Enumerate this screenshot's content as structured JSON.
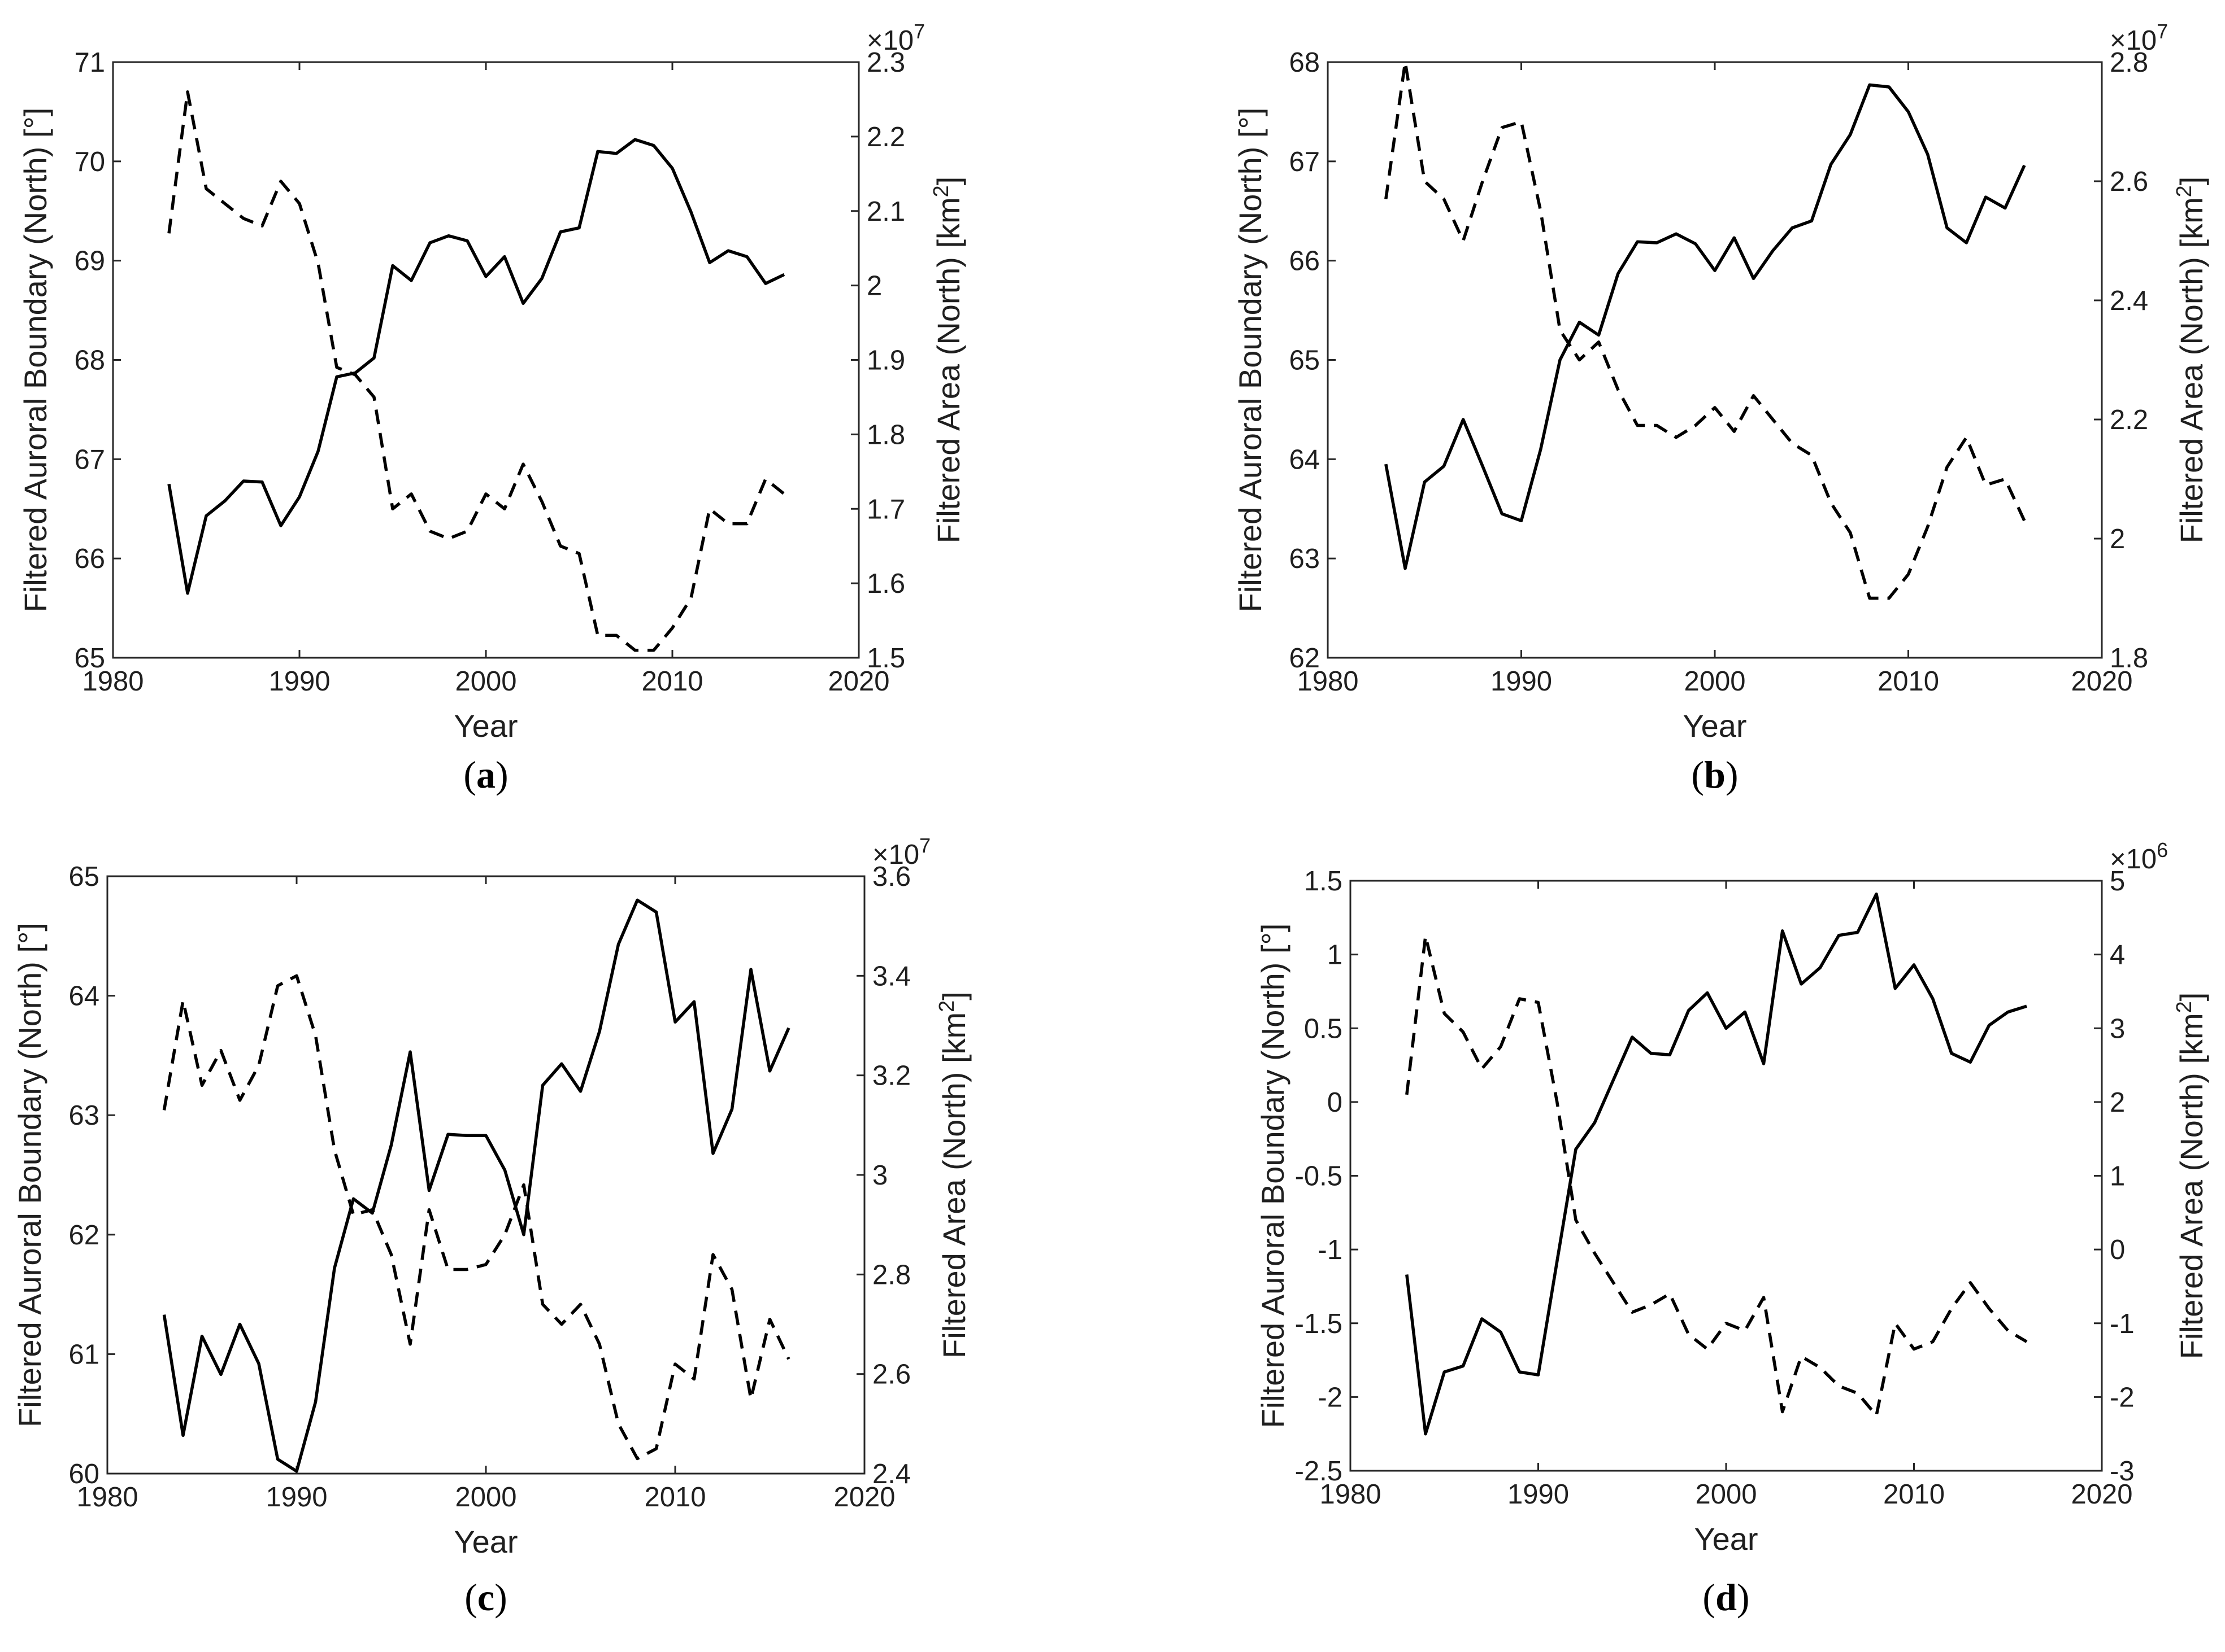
{
  "chart_data": [
    {
      "type": "line",
      "caption": "a",
      "xlabel": "Year",
      "ylabel_left": "Filtered Auroral Boundary (North) [°]",
      "ylabel_right": "Filtered Area (North) [km",
      "ylabel_right_sup": "2",
      "ylabel_right_close": "]",
      "xlim": [
        1980,
        2020
      ],
      "xticks": [
        "1980",
        "1990",
        "2000",
        "2010",
        "2020"
      ],
      "ylim_left": [
        65,
        71
      ],
      "yticks_left": [
        "65",
        "66",
        "67",
        "68",
        "69",
        "70",
        "71"
      ],
      "ylim_right": [
        1.5,
        2.3
      ],
      "yticks_right": [
        "1.5",
        "1.6",
        "1.7",
        "1.8",
        "1.9",
        "2",
        "2.1",
        "2.2",
        "2.3"
      ],
      "right_exponent": "×10",
      "right_exponent_power": "7",
      "x": [
        1983,
        1984,
        1985,
        1986,
        1987,
        1988,
        1989,
        1990,
        1991,
        1992,
        1993,
        1994,
        1995,
        1996,
        1997,
        1998,
        1999,
        2000,
        2001,
        2002,
        2003,
        2004,
        2005,
        2006,
        2007,
        2008,
        2009,
        2010,
        2011,
        2012,
        2013,
        2014,
        2015,
        2016
      ],
      "series": [
        {
          "axis": "left",
          "style": "solid",
          "values": [
            66.75,
            65.65,
            66.43,
            66.58,
            66.78,
            66.77,
            66.33,
            66.62,
            67.08,
            67.83,
            67.87,
            68.02,
            68.95,
            68.8,
            69.18,
            69.25,
            69.2,
            68.84,
            69.04,
            68.57,
            68.82,
            69.29,
            69.33,
            70.1,
            70.08,
            70.22,
            70.16,
            69.93,
            69.49,
            68.98,
            69.1,
            69.04,
            68.77,
            68.86
          ]
        },
        {
          "axis": "right",
          "style": "dashed",
          "values": [
            2.07,
            2.26,
            2.13,
            2.11,
            2.09,
            2.08,
            2.14,
            2.11,
            2.03,
            1.89,
            1.88,
            1.85,
            1.7,
            1.72,
            1.67,
            1.66,
            1.67,
            1.72,
            1.7,
            1.76,
            1.71,
            1.65,
            1.64,
            1.53,
            1.53,
            1.51,
            1.51,
            1.54,
            1.58,
            1.7,
            1.68,
            1.68,
            1.74,
            1.72
          ]
        }
      ]
    },
    {
      "type": "line",
      "caption": "b",
      "xlabel": "Year",
      "ylabel_left": "Filtered Auroral Boundary (North) [°]",
      "ylabel_right": "Filtered Area (North) [km",
      "ylabel_right_sup": "2",
      "ylabel_right_close": "]",
      "xlim": [
        1980,
        2020
      ],
      "xticks": [
        "1980",
        "1990",
        "2000",
        "2010",
        "2020"
      ],
      "ylim_left": [
        62,
        68
      ],
      "yticks_left": [
        "62",
        "63",
        "64",
        "65",
        "66",
        "67",
        "68"
      ],
      "ylim_right": [
        1.8,
        2.8
      ],
      "yticks_right": [
        "1.8",
        "2",
        "2.2",
        "2.4",
        "2.6",
        "2.8"
      ],
      "right_exponent": "×10",
      "right_exponent_power": "7",
      "x": [
        1983,
        1984,
        1985,
        1986,
        1987,
        1988,
        1989,
        1990,
        1991,
        1992,
        1993,
        1994,
        1995,
        1996,
        1997,
        1998,
        1999,
        2000,
        2001,
        2002,
        2003,
        2004,
        2005,
        2006,
        2007,
        2008,
        2009,
        2010,
        2011,
        2012,
        2013,
        2014,
        2015,
        2016
      ],
      "series": [
        {
          "axis": "left",
          "style": "solid",
          "values": [
            63.95,
            62.9,
            63.77,
            63.93,
            64.4,
            63.93,
            63.45,
            63.38,
            64.1,
            65.0,
            65.38,
            65.25,
            65.87,
            66.19,
            66.18,
            66.27,
            66.17,
            65.9,
            66.23,
            65.82,
            66.1,
            66.33,
            66.4,
            66.97,
            67.27,
            67.77,
            67.75,
            67.5,
            67.07,
            66.33,
            66.18,
            66.64,
            66.53,
            66.96
          ]
        },
        {
          "axis": "right",
          "style": "dashed",
          "values": [
            2.57,
            2.8,
            2.6,
            2.57,
            2.5,
            2.6,
            2.69,
            2.7,
            2.55,
            2.35,
            2.3,
            2.33,
            2.25,
            2.19,
            2.19,
            2.17,
            2.19,
            2.22,
            2.18,
            2.24,
            2.2,
            2.16,
            2.14,
            2.06,
            2.01,
            1.9,
            1.9,
            1.94,
            2.02,
            2.12,
            2.17,
            2.09,
            2.1,
            2.03
          ]
        }
      ]
    },
    {
      "type": "line",
      "caption": "c",
      "xlabel": "Year",
      "ylabel_left": "Filtered Auroral Boundary (North) [°]",
      "ylabel_right": "Filtered Area (North) [km",
      "ylabel_right_sup": "2",
      "ylabel_right_close": "]",
      "xlim": [
        1980,
        2020
      ],
      "xticks": [
        "1980",
        "1990",
        "2000",
        "2010",
        "2020"
      ],
      "ylim_left": [
        60,
        65
      ],
      "yticks_left": [
        "60",
        "61",
        "62",
        "63",
        "64",
        "65"
      ],
      "ylim_right": [
        2.4,
        3.6
      ],
      "yticks_right": [
        "2.4",
        "2.6",
        "2.8",
        "3",
        "3.2",
        "3.4",
        "3.6"
      ],
      "right_exponent": "×10",
      "right_exponent_power": "7",
      "x": [
        1983,
        1984,
        1985,
        1986,
        1987,
        1988,
        1989,
        1990,
        1991,
        1992,
        1993,
        1994,
        1995,
        1996,
        1997,
        1998,
        1999,
        2000,
        2001,
        2002,
        2003,
        2004,
        2005,
        2006,
        2007,
        2008,
        2009,
        2010,
        2011,
        2012,
        2013,
        2014,
        2015,
        2016
      ],
      "series": [
        {
          "axis": "left",
          "style": "solid",
          "values": [
            61.33,
            60.32,
            61.15,
            60.83,
            61.25,
            60.92,
            60.12,
            60.02,
            60.6,
            61.72,
            62.3,
            62.18,
            62.75,
            63.53,
            62.37,
            62.84,
            62.83,
            62.83,
            62.54,
            62.0,
            63.25,
            63.43,
            63.2,
            63.7,
            64.43,
            64.8,
            64.7,
            63.78,
            63.95,
            62.68,
            63.05,
            64.22,
            63.37,
            63.73
          ]
        },
        {
          "axis": "right",
          "style": "dashed",
          "values": [
            3.13,
            3.35,
            3.18,
            3.25,
            3.15,
            3.22,
            3.38,
            3.4,
            3.28,
            3.05,
            2.92,
            2.93,
            2.84,
            2.66,
            2.93,
            2.81,
            2.81,
            2.82,
            2.88,
            2.98,
            2.74,
            2.7,
            2.74,
            2.66,
            2.5,
            2.43,
            2.45,
            2.62,
            2.59,
            2.84,
            2.77,
            2.55,
            2.71,
            2.63
          ]
        }
      ]
    },
    {
      "type": "line",
      "caption": "d",
      "xlabel": "Year",
      "ylabel_left": "Filtered Auroral Boundary (North) [°]",
      "ylabel_right": "Filtered Area (North) [km",
      "ylabel_right_sup": "2",
      "ylabel_right_close": "]",
      "xlim": [
        1980,
        2020
      ],
      "xticks": [
        "1980",
        "1990",
        "2000",
        "2010",
        "2020"
      ],
      "ylim_left": [
        -2.5,
        1.5
      ],
      "yticks_left": [
        "-2.5",
        "-2",
        "-1.5",
        "-1",
        "-0.5",
        "0",
        "0.5",
        "1",
        "1.5"
      ],
      "ylim_right": [
        -3,
        5
      ],
      "yticks_right": [
        "-3",
        "-2",
        "-1",
        "0",
        "1",
        "2",
        "3",
        "4",
        "5"
      ],
      "right_exponent": "×10",
      "right_exponent_power": "6",
      "x": [
        1983,
        1984,
        1985,
        1986,
        1987,
        1988,
        1989,
        1990,
        1991,
        1992,
        1993,
        1994,
        1995,
        1996,
        1997,
        1998,
        1999,
        2000,
        2001,
        2002,
        2003,
        2004,
        2005,
        2006,
        2007,
        2008,
        2009,
        2010,
        2011,
        2012,
        2013,
        2014,
        2015,
        2016
      ],
      "series": [
        {
          "axis": "left",
          "style": "solid",
          "values": [
            -1.17,
            -2.25,
            -1.83,
            -1.79,
            -1.47,
            -1.56,
            -1.83,
            -1.85,
            -1.08,
            -0.32,
            -0.14,
            0.15,
            0.44,
            0.33,
            0.32,
            0.62,
            0.74,
            0.5,
            0.61,
            0.26,
            1.16,
            0.8,
            0.91,
            1.13,
            1.15,
            1.41,
            0.77,
            0.93,
            0.7,
            0.33,
            0.27,
            0.52,
            0.61,
            0.65
          ]
        },
        {
          "axis": "right",
          "style": "dashed",
          "values": [
            2.1,
            4.25,
            3.2,
            2.95,
            2.45,
            2.75,
            3.4,
            3.35,
            2.0,
            0.4,
            -0.05,
            -0.45,
            -0.85,
            -0.75,
            -0.6,
            -1.15,
            -1.35,
            -1.0,
            -1.1,
            -0.65,
            -2.2,
            -1.45,
            -1.6,
            -1.85,
            -1.95,
            -2.25,
            -1.0,
            -1.35,
            -1.25,
            -0.8,
            -0.45,
            -0.8,
            -1.1,
            -1.25
          ]
        }
      ]
    }
  ]
}
